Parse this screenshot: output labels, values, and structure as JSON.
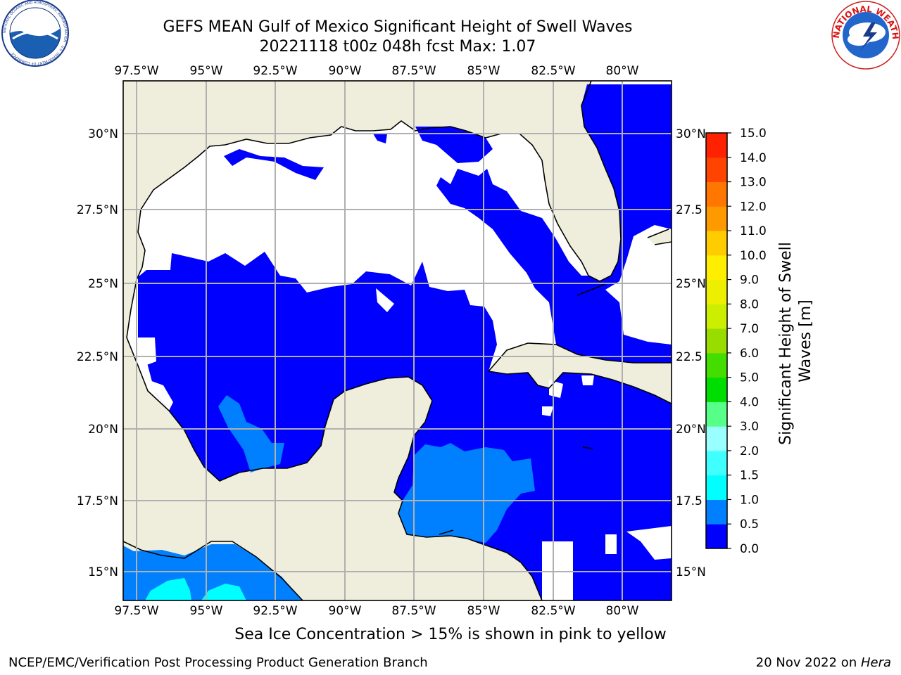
{
  "header": {
    "title_line1": "GEFS MEAN Gulf of Mexico Significant Height of Swell Waves",
    "title_line2": "20221118 t00z 048h fcst   Max: 1.07"
  },
  "logos": {
    "left": "NOAA",
    "left_ring_text": "NATIONAL OCEANIC AND ATMOSPHERIC ADMINISTRATION · U.S. DEPARTMENT OF COMMERCE",
    "right_ring_text": "NATIONAL WEATHER SERVICE"
  },
  "map": {
    "lon_labels": [
      "97.5°W",
      "95°W",
      "92.5°W",
      "90°W",
      "87.5°W",
      "85°W",
      "82.5°W",
      "80°W"
    ],
    "lat_labels_left": [
      "30°N",
      "27.5°N",
      "25°N",
      "22.5°N",
      "20°N",
      "17.5°N",
      "15°N"
    ],
    "lat_labels_right": [
      "30°N",
      "27.5",
      "25°N",
      "22.5",
      "20°N",
      "17.5",
      "15°N"
    ],
    "colors": {
      "land": "#efeedd",
      "level_0": "#0000ff",
      "level_05": "#0080ff",
      "level_1": "#00ffff"
    }
  },
  "colorbar": {
    "label_line1": "Significant Height of Swell",
    "label_line2": "Waves [m]",
    "ticks": [
      "0.0",
      "0.5",
      "1.0",
      "1.5",
      "2.0",
      "3.0",
      "4.0",
      "5.0",
      "6.0",
      "7.0",
      "8.0",
      "9.0",
      "10.0",
      "11.0",
      "12.0",
      "13.0",
      "14.0",
      "15.0"
    ],
    "colors": [
      "#0000ff",
      "#0080ff",
      "#00ffff",
      "#40ffff",
      "#99ffff",
      "#55ff88",
      "#00dd00",
      "#44dd00",
      "#99dd00",
      "#ccee00",
      "#eeee00",
      "#ffee00",
      "#ffcc00",
      "#ff9900",
      "#ff7700",
      "#ff4400",
      "#ff2200",
      "#ff0000"
    ]
  },
  "footer": {
    "note": "Sea Ice Concentration > 15% is shown in pink to yellow",
    "credit": "NCEP/EMC/Verification Post Processing Product Generation Branch",
    "date_prefix": "20 Nov 2022 on ",
    "date_host": "Hera"
  }
}
